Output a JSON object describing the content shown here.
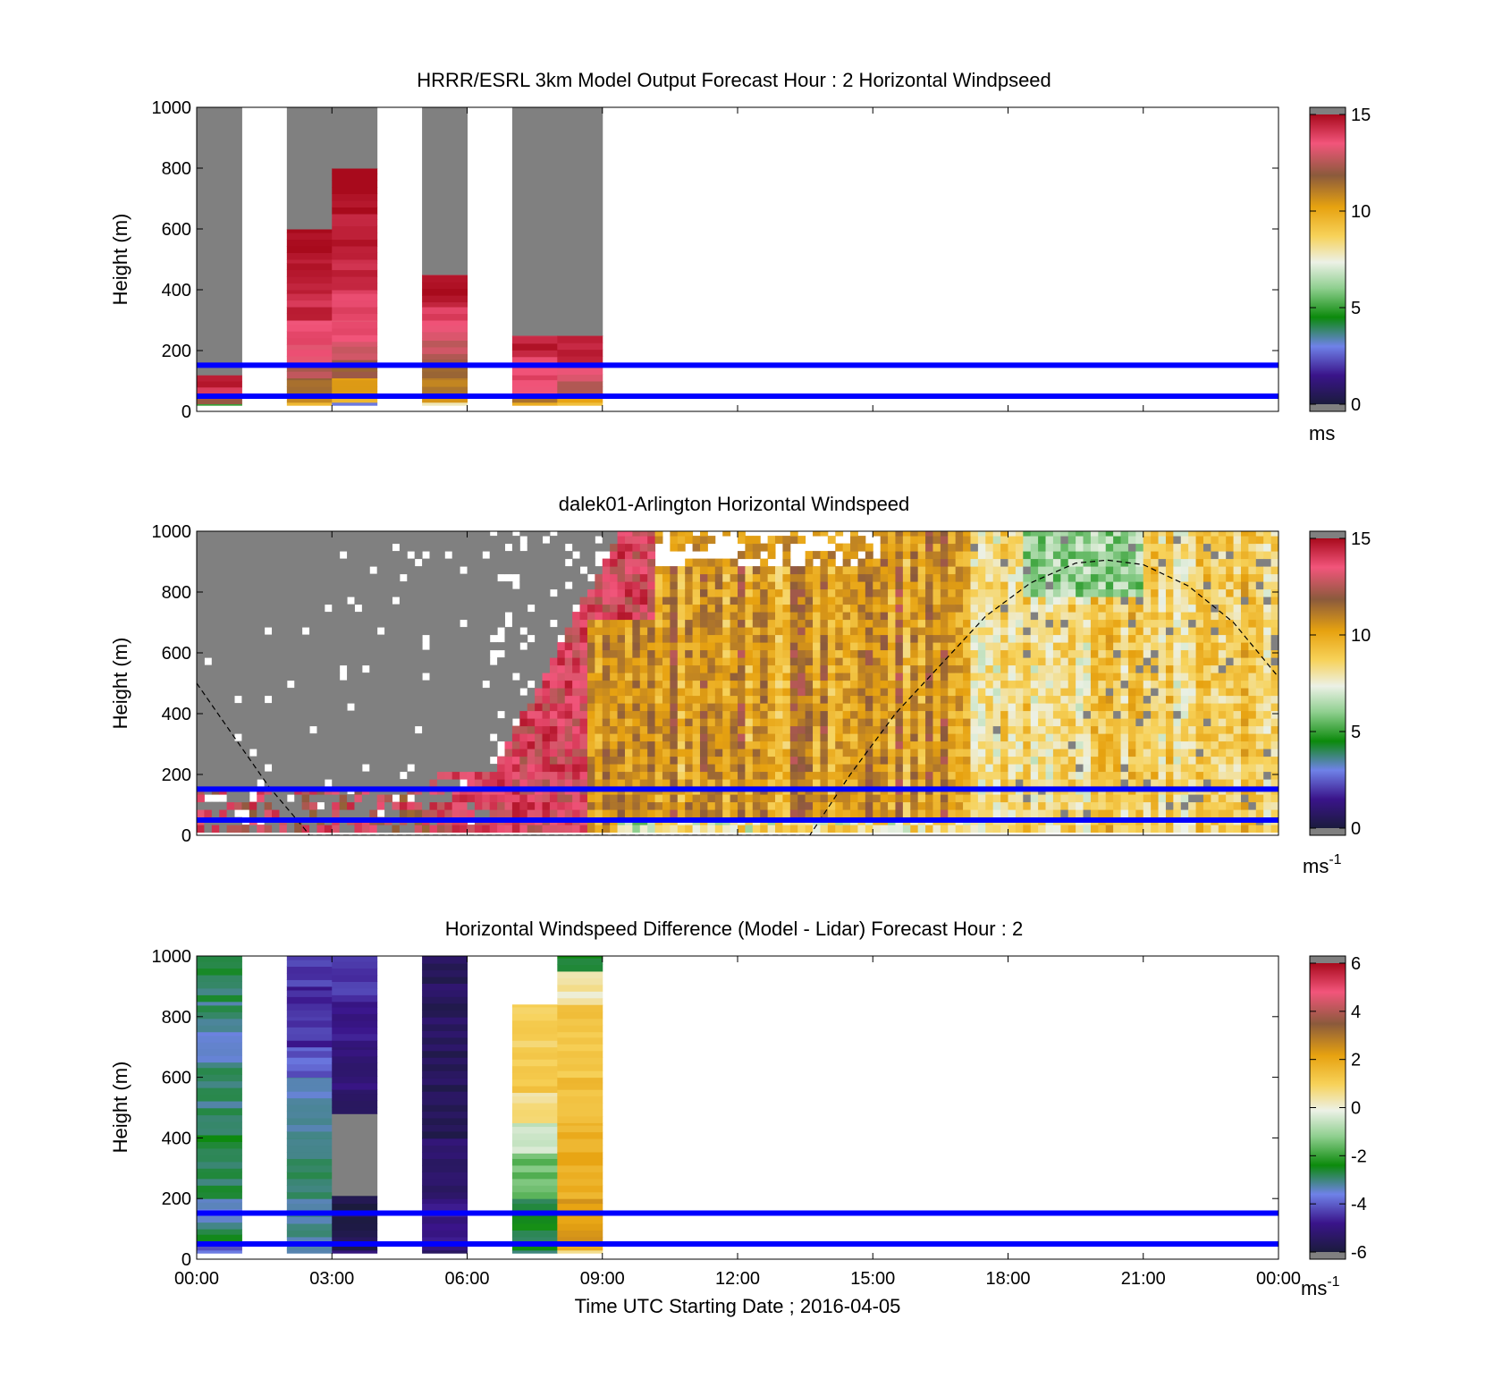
{
  "figure": {
    "time_axis": {
      "label": "Time UTC  Starting Date ; 2016-04-05",
      "ticks": [
        "00:00",
        "03:00",
        "06:00",
        "09:00",
        "12:00",
        "15:00",
        "18:00",
        "21:00",
        "00:00"
      ],
      "range_hours": [
        0,
        24
      ]
    },
    "height_axis": {
      "label": "Height (m)",
      "ticks": [
        0,
        200,
        400,
        600,
        800,
        1000
      ],
      "range": [
        0,
        1000
      ]
    },
    "reference_lines_m": [
      50,
      152
    ],
    "reference_line_color": "#0000ff"
  },
  "chart_data": [
    {
      "type": "heatmap",
      "title": "HRRR/ESRL 3km Model Output   Forecast Hour : 2 Horizontal Windpseed",
      "ylabel": "Height (m)",
      "xlabel": "",
      "ylim": [
        0,
        1000
      ],
      "colorbar": {
        "ticks": [
          0,
          5,
          10,
          15
        ],
        "unit": "ms",
        "unit_sup": "",
        "range": [
          0,
          15
        ]
      },
      "columns": [
        {
          "t_start": 0,
          "t_end": 1,
          "top_m": 1000,
          "profile": [
            [
              25,
              5
            ],
            [
              40,
              12
            ],
            [
              60,
              12.5
            ],
            [
              80,
              14.2
            ],
            [
              100,
              14.8
            ],
            [
              120,
              14.6
            ],
            [
              1000,
              "nodata"
            ]
          ]
        },
        {
          "t_start": 2,
          "t_end": 3,
          "top_m": 1000,
          "profile": [
            [
              30,
              9.8
            ],
            [
              60,
              10.5
            ],
            [
              110,
              11.5
            ],
            [
              160,
              12.6
            ],
            [
              220,
              13.5
            ],
            [
              300,
              13.8
            ],
            [
              400,
              14.3
            ],
            [
              500,
              14.7
            ],
            [
              600,
              15
            ],
            [
              1000,
              "nodata"
            ]
          ]
        },
        {
          "t_start": 3,
          "t_end": 4,
          "top_m": 1000,
          "profile": [
            [
              30,
              3
            ],
            [
              60,
              9.8
            ],
            [
              110,
              10.5
            ],
            [
              170,
              11.8
            ],
            [
              230,
              13
            ],
            [
              300,
              13.6
            ],
            [
              400,
              14
            ],
            [
              500,
              14.3
            ],
            [
              650,
              14.6
            ],
            [
              800,
              15
            ],
            [
              1000,
              "nodata"
            ]
          ]
        },
        {
          "t_start": 5,
          "t_end": 6,
          "top_m": 1000,
          "profile": [
            [
              30,
              7.5
            ],
            [
              60,
              10.3
            ],
            [
              110,
              11.2
            ],
            [
              150,
              11.7
            ],
            [
              190,
              12.3
            ],
            [
              240,
              12.8
            ],
            [
              300,
              13.5
            ],
            [
              360,
              14.1
            ],
            [
              450,
              14.8
            ],
            [
              1000,
              "nodata"
            ]
          ]
        },
        {
          "t_start": 7,
          "t_end": 8,
          "top_m": 1000,
          "profile": [
            [
              30,
              9.6
            ],
            [
              60,
              11
            ],
            [
              120,
              13.8
            ],
            [
              180,
              13.4
            ],
            [
              250,
              14.6
            ],
            [
              1000,
              "nodata"
            ]
          ]
        },
        {
          "t_start": 8,
          "t_end": 9,
          "top_m": 1000,
          "profile": [
            [
              30,
              9.6
            ],
            [
              60,
              10.5
            ],
            [
              100,
              12.2
            ],
            [
              160,
              13.4
            ],
            [
              250,
              14.7
            ],
            [
              1000,
              "nodata"
            ]
          ]
        }
      ]
    },
    {
      "type": "heatmap",
      "title": "dalek01-Arlington  Horizontal Windspeed",
      "ylabel": "Height (m)",
      "xlabel": "",
      "ylim": [
        0,
        1000
      ],
      "colorbar": {
        "ticks": [
          0,
          5,
          10,
          15
        ],
        "unit": "ms",
        "unit_sup": "-1",
        "range": [
          0,
          15
        ]
      },
      "description_of_field": {
        "t_0_to_6_5h": "mostly no-data (grey) above ~150 m, 12-15 m/s near surface",
        "t_6_5_to_10h": "12-15 m/s (red/pink) rising to 1000 m",
        "t_10_to_17h": "9-12 m/s (orange/brown)",
        "t_17_to_24h": "7-10 m/s (yellow/cream) with 5-7 m/s (green) bands near 18-21h aloft"
      },
      "overlay_curve": {
        "style": "dashed",
        "points_h_m": [
          [
            0,
            500
          ],
          [
            0.8,
            330
          ],
          [
            1.6,
            160
          ],
          [
            2.4,
            20
          ],
          [
            2.5,
            0
          ],
          [
            13.6,
            0
          ],
          [
            14.5,
            200
          ],
          [
            15.5,
            400
          ],
          [
            16.5,
            560
          ],
          [
            17.5,
            720
          ],
          [
            18.5,
            830
          ],
          [
            19.5,
            895
          ],
          [
            20.2,
            905
          ],
          [
            21,
            890
          ],
          [
            22,
            820
          ],
          [
            23,
            700
          ],
          [
            24,
            520
          ]
        ]
      }
    },
    {
      "type": "heatmap",
      "title": "Horizontal Windspeed Difference (Model - Lidar) Forecast Hour : 2",
      "ylabel": "Height (m)",
      "xlabel": "Time UTC  Starting Date ; 2016-04-05",
      "ylim": [
        0,
        1000
      ],
      "colorbar": {
        "ticks": [
          -6,
          -4,
          -2,
          0,
          2,
          4,
          6
        ],
        "unit": "ms",
        "unit_sup": "-1",
        "range": [
          -6,
          6
        ]
      },
      "columns": [
        {
          "t_start": 0,
          "t_end": 1,
          "profile": [
            [
              30,
              -3.8
            ],
            [
              60,
              -4.2
            ],
            [
              100,
              -2.5
            ],
            [
              200,
              -3.3
            ],
            [
              300,
              -2.8
            ],
            [
              500,
              -2.7
            ],
            [
              650,
              -3.0
            ],
            [
              750,
              -3.5
            ],
            [
              850,
              -3.0
            ],
            [
              1000,
              -2.8
            ]
          ]
        },
        {
          "t_start": 2,
          "t_end": 3,
          "profile": [
            [
              30,
              -3.0
            ],
            [
              200,
              -3.1
            ],
            [
              400,
              -3.0
            ],
            [
              600,
              -3.3
            ],
            [
              700,
              -4.0
            ],
            [
              800,
              -4.5
            ],
            [
              900,
              -4.6
            ],
            [
              1000,
              -4.3
            ]
          ]
        },
        {
          "t_start": 3,
          "t_end": 4,
          "profile": [
            [
              30,
              -4.8
            ],
            [
              210,
              -5.8
            ],
            [
              480,
              "nodata"
            ],
            [
              560,
              -5.6
            ],
            [
              700,
              -5.0
            ],
            [
              850,
              -4.8
            ],
            [
              1000,
              -4.3
            ]
          ]
        },
        {
          "t_start": 5,
          "t_end": 6,
          "profile": [
            [
              30,
              -5.5
            ],
            [
              200,
              -4.8
            ],
            [
              400,
              -5.2
            ],
            [
              600,
              -5.6
            ],
            [
              800,
              -5.5
            ],
            [
              1000,
              -5.5
            ]
          ]
        },
        {
          "t_start": 7,
          "t_end": 8,
          "profile": [
            [
              30,
              -2.8
            ],
            [
              200,
              -2.6
            ],
            [
              350,
              -1.5
            ],
            [
              450,
              -0.5
            ],
            [
              550,
              0.5
            ],
            [
              700,
              1.2
            ],
            [
              840,
              1.0
            ]
          ]
        },
        {
          "t_start": 8,
          "t_end": 9,
          "profile": [
            [
              30,
              0.3
            ],
            [
              200,
              2.2
            ],
            [
              450,
              1.8
            ],
            [
              600,
              1.5
            ],
            [
              750,
              1.3
            ],
            [
              840,
              1.2
            ],
            [
              950,
              0.3
            ],
            [
              1000,
              -2.5
            ]
          ]
        }
      ]
    }
  ]
}
